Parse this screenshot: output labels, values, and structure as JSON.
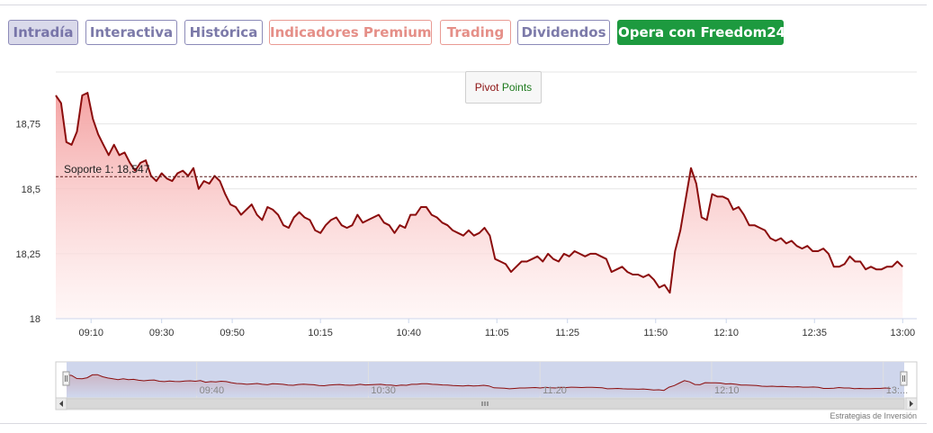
{
  "tabs": [
    {
      "label": "Intradía",
      "style": "active"
    },
    {
      "label": "Interactiva",
      "style": "normal"
    },
    {
      "label": "Histórica",
      "style": "normal"
    },
    {
      "label": "Indicadores Premium",
      "style": "premium"
    },
    {
      "label": "Trading",
      "style": "premium"
    },
    {
      "label": "Dividendos",
      "style": "normal"
    },
    {
      "label": "Opera con Freedom24",
      "style": "cta"
    }
  ],
  "legend": {
    "word1": "Pivot",
    "word2": "Points"
  },
  "support": {
    "label": "Soporte 1: 18,547",
    "value": 18.547
  },
  "credits": "Estrategias de Inversión",
  "colors": {
    "line": "#8b0d0d",
    "fill_top": "#f4a3a3",
    "navigator_bg": "#cfd6ec",
    "cta": "#1d9a3f"
  },
  "chart_data": {
    "type": "area",
    "title": "",
    "xlabel": "",
    "ylabel": "",
    "ylim": [
      18,
      18.95
    ],
    "y_ticks": [
      {
        "value": 18,
        "label": "18"
      },
      {
        "value": 18.25,
        "label": "18,25"
      },
      {
        "value": 18.5,
        "label": "18,5"
      },
      {
        "value": 18.75,
        "label": "18,75"
      }
    ],
    "x_ticks": [
      "09:10",
      "09:30",
      "09:50",
      "10:15",
      "10:40",
      "11:05",
      "11:25",
      "11:50",
      "12:10",
      "12:35",
      "13:00"
    ],
    "x_tick_minutes": [
      550,
      570,
      590,
      615,
      640,
      665,
      685,
      710,
      730,
      755,
      780
    ],
    "xlim_minutes": [
      540,
      784
    ],
    "series": [
      {
        "name": "",
        "points": [
          [
            540,
            18.86
          ],
          [
            541.5,
            18.83
          ],
          [
            543,
            18.68
          ],
          [
            544.5,
            18.67
          ],
          [
            546,
            18.72
          ],
          [
            547.5,
            18.86
          ],
          [
            549,
            18.87
          ],
          [
            550.5,
            18.77
          ],
          [
            552,
            18.71
          ],
          [
            553.5,
            18.67
          ],
          [
            555,
            18.63
          ],
          [
            556.5,
            18.67
          ],
          [
            558,
            18.63
          ],
          [
            559.5,
            18.64
          ],
          [
            561,
            18.6
          ],
          [
            562.5,
            18.57
          ],
          [
            564,
            18.6
          ],
          [
            565.5,
            18.61
          ],
          [
            567,
            18.55
          ],
          [
            568.5,
            18.53
          ],
          [
            570,
            18.56
          ],
          [
            571.5,
            18.54
          ],
          [
            573,
            18.53
          ],
          [
            574.5,
            18.56
          ],
          [
            576,
            18.57
          ],
          [
            577.5,
            18.55
          ],
          [
            579,
            18.58
          ],
          [
            580.5,
            18.5
          ],
          [
            582,
            18.53
          ],
          [
            583.5,
            18.52
          ],
          [
            585,
            18.55
          ],
          [
            586.5,
            18.53
          ],
          [
            588,
            18.48
          ],
          [
            589.5,
            18.44
          ],
          [
            591,
            18.43
          ],
          [
            592.5,
            18.4
          ],
          [
            594,
            18.42
          ],
          [
            595.5,
            18.44
          ],
          [
            597,
            18.4
          ],
          [
            598.5,
            18.38
          ],
          [
            600,
            18.43
          ],
          [
            601.5,
            18.42
          ],
          [
            603,
            18.4
          ],
          [
            604.5,
            18.36
          ],
          [
            606,
            18.35
          ],
          [
            607.5,
            18.39
          ],
          [
            609,
            18.41
          ],
          [
            610.5,
            18.39
          ],
          [
            612,
            18.38
          ],
          [
            613.5,
            18.34
          ],
          [
            615,
            18.33
          ],
          [
            616.5,
            18.36
          ],
          [
            618,
            18.38
          ],
          [
            619.5,
            18.39
          ],
          [
            621,
            18.36
          ],
          [
            622.5,
            18.35
          ],
          [
            624,
            18.36
          ],
          [
            625.5,
            18.4
          ],
          [
            627,
            18.37
          ],
          [
            628.5,
            18.38
          ],
          [
            630,
            18.39
          ],
          [
            631.5,
            18.4
          ],
          [
            633,
            18.37
          ],
          [
            634.5,
            18.36
          ],
          [
            636,
            18.33
          ],
          [
            637.5,
            18.36
          ],
          [
            639,
            18.35
          ],
          [
            640.5,
            18.4
          ],
          [
            642,
            18.4
          ],
          [
            643.5,
            18.43
          ],
          [
            645,
            18.43
          ],
          [
            646.5,
            18.4
          ],
          [
            648,
            18.39
          ],
          [
            649.5,
            18.37
          ],
          [
            651,
            18.36
          ],
          [
            652.5,
            18.34
          ],
          [
            654,
            18.33
          ],
          [
            655.5,
            18.32
          ],
          [
            657,
            18.34
          ],
          [
            658.5,
            18.32
          ],
          [
            660,
            18.33
          ],
          [
            661.5,
            18.35
          ],
          [
            663,
            18.32
          ],
          [
            664.5,
            18.23
          ],
          [
            666,
            18.22
          ],
          [
            667.5,
            18.21
          ],
          [
            669,
            18.18
          ],
          [
            670.5,
            18.2
          ],
          [
            672,
            18.22
          ],
          [
            673.5,
            18.22
          ],
          [
            675,
            18.23
          ],
          [
            676.5,
            18.24
          ],
          [
            678,
            18.22
          ],
          [
            679.5,
            18.25
          ],
          [
            681,
            18.23
          ],
          [
            682.5,
            18.22
          ],
          [
            684,
            18.25
          ],
          [
            685.5,
            18.24
          ],
          [
            687,
            18.26
          ],
          [
            688.5,
            18.25
          ],
          [
            690,
            18.24
          ],
          [
            691.5,
            18.25
          ],
          [
            693,
            18.25
          ],
          [
            694.5,
            18.24
          ],
          [
            696,
            18.23
          ],
          [
            697.5,
            18.18
          ],
          [
            699,
            18.19
          ],
          [
            700.5,
            18.2
          ],
          [
            702,
            18.18
          ],
          [
            703.5,
            18.17
          ],
          [
            705,
            18.17
          ],
          [
            706.5,
            18.16
          ],
          [
            708,
            18.17
          ],
          [
            709.5,
            18.15
          ],
          [
            711,
            18.12
          ],
          [
            712.5,
            18.13
          ],
          [
            714,
            18.1
          ],
          [
            715.5,
            18.26
          ],
          [
            717,
            18.34
          ],
          [
            718.5,
            18.46
          ],
          [
            720,
            18.58
          ],
          [
            721.5,
            18.52
          ],
          [
            723,
            18.39
          ],
          [
            724.5,
            18.38
          ],
          [
            726,
            18.48
          ],
          [
            727.5,
            18.47
          ],
          [
            729,
            18.47
          ],
          [
            730.5,
            18.46
          ],
          [
            732,
            18.42
          ],
          [
            733.5,
            18.43
          ],
          [
            735,
            18.4
          ],
          [
            736.5,
            18.36
          ],
          [
            738,
            18.36
          ],
          [
            739.5,
            18.35
          ],
          [
            741,
            18.34
          ],
          [
            742.5,
            18.31
          ],
          [
            744,
            18.3
          ],
          [
            745.5,
            18.31
          ],
          [
            747,
            18.29
          ],
          [
            748.5,
            18.3
          ],
          [
            750,
            18.28
          ],
          [
            751.5,
            18.27
          ],
          [
            753,
            18.28
          ],
          [
            754.5,
            18.26
          ],
          [
            756,
            18.26
          ],
          [
            757.5,
            18.27
          ],
          [
            759,
            18.25
          ],
          [
            760.5,
            18.2
          ],
          [
            762,
            18.2
          ],
          [
            763.5,
            18.21
          ],
          [
            765,
            18.24
          ],
          [
            766.5,
            18.22
          ],
          [
            768,
            18.22
          ],
          [
            769.5,
            18.19
          ],
          [
            771,
            18.2
          ],
          [
            772.5,
            18.19
          ],
          [
            774,
            18.19
          ],
          [
            775.5,
            18.2
          ],
          [
            777,
            18.2
          ],
          [
            778.5,
            18.22
          ],
          [
            780,
            18.2
          ]
        ]
      }
    ],
    "navigator": {
      "x_ticks": [
        "09:40",
        "10:30",
        "11:20",
        "12:10",
        "13:..."
      ],
      "x_tick_minutes": [
        580,
        630,
        680,
        730,
        780
      ]
    }
  }
}
